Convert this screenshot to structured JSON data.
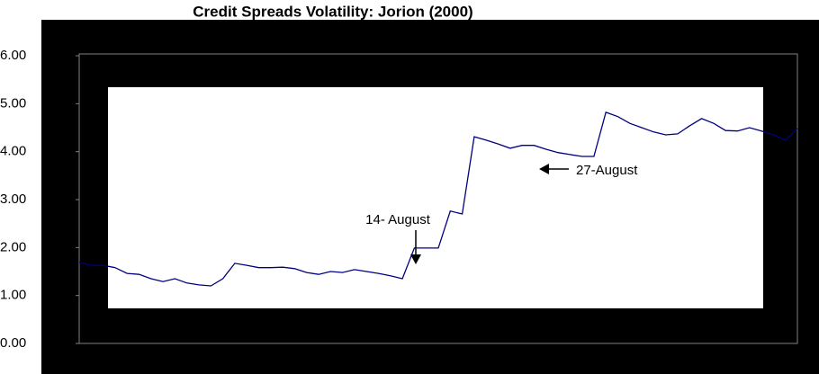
{
  "chart_data": {
    "type": "line",
    "title": "Credit Spreads Volatility: Jorion (2000)",
    "series": [
      {
        "name": "Credit spreads volatility",
        "color": "#000080",
        "values": [
          1.69,
          1.63,
          1.63,
          1.58,
          1.46,
          1.44,
          1.35,
          1.29,
          1.35,
          1.26,
          1.22,
          1.2,
          1.35,
          1.67,
          1.63,
          1.58,
          1.58,
          1.59,
          1.56,
          1.48,
          1.44,
          1.5,
          1.48,
          1.54,
          1.5,
          1.46,
          1.41,
          1.35,
          1.99,
          1.99,
          1.99,
          2.76,
          2.7,
          4.31,
          4.24,
          4.16,
          4.07,
          4.13,
          4.13,
          4.05,
          3.98,
          3.94,
          3.9,
          3.9,
          4.82,
          4.73,
          4.59,
          4.5,
          4.41,
          4.35,
          4.37,
          4.54,
          4.69,
          4.59,
          4.44,
          4.43,
          4.5,
          4.43,
          4.35,
          4.24,
          4.48
        ]
      }
    ],
    "ylim": [
      0,
      6
    ],
    "yticks": [
      {
        "value": 0,
        "label": "0.00"
      },
      {
        "value": 1,
        "label": "1.00"
      },
      {
        "value": 2,
        "label": "2.00"
      },
      {
        "value": 3,
        "label": "3.00"
      },
      {
        "value": 4,
        "label": "4.00"
      },
      {
        "value": 5,
        "label": "5.00"
      },
      {
        "value": 6,
        "label": "6.00"
      }
    ],
    "annotations": [
      {
        "text": "14- August"
      },
      {
        "text": "27-August"
      }
    ]
  }
}
